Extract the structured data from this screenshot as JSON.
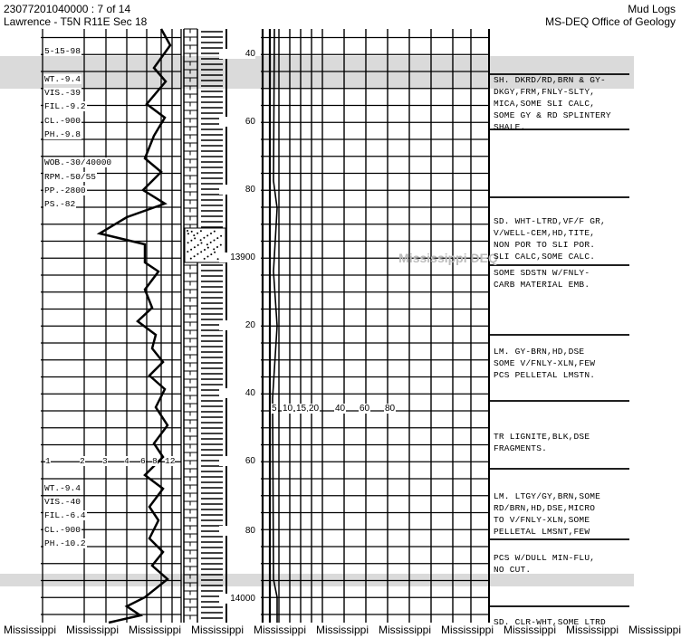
{
  "header": {
    "doc_id": "23077201040000 : 7 of 14",
    "location": "Lawrence - T5N R11E Sec 18",
    "doc_type": "Mud Logs",
    "agency": "MS-DEQ Office of Geology"
  },
  "depth_labels": [
    "40",
    "60",
    "80",
    "13900",
    "20",
    "40",
    "60",
    "80",
    "14000"
  ],
  "mud_props_upper": [
    "5-15-98",
    "WT.-9.4",
    "VIS.-39",
    "FIL.-9.2",
    "CL.-900",
    "PH.-9.8",
    "WOB.-30/40000",
    "RPM.-50/55",
    "PP.-2800",
    "PS.-82"
  ],
  "drill_rate_scale": [
    "1",
    "2",
    "3",
    "4",
    "6",
    "8",
    "12"
  ],
  "mud_props_lower": [
    "WT.-9.4",
    "VIS.-40",
    "FIL.-6.4",
    "CL.-900",
    "PH.-10.2"
  ],
  "gas_scale": [
    "5",
    "10",
    "15",
    "20",
    "40",
    "60",
    "80"
  ],
  "descriptions": [
    "SH. DKRD/RD,BRN & GY-\nDKGY,FRM,FNLY-SLTY,\nMICA,SOME SLI CALC,\nSOME GY & RD SPLINTERY\nSHALE.",
    "SD. WHT-LTRD,VF/F GR,\nV/WELL-CEM,HD,TITE,\nNON POR TO SLI POR.\nSLI CALC,SOME CALC.",
    "SOME SDSTN W/FNLY-\nCARB MATERIAL EMB.",
    "LM. GY-BRN,HD,DSE\nSOME V/FNLY-XLN,FEW\nPCS PELLETAL LMSTN.",
    "TR LIGNITE,BLK,DSE\nFRAGMENTS.",
    "LM. LTGY/GY,BRN,SOME\nRD/BRN,HD,DSE,MICRO\nTO V/FNLY-XLN,SOME\nPELLETAL LMSNT,FEW",
    "PCS W/DULL MIN-FLU,\nNO CUT.",
    "SD. CLR-WHT,SOME LTRD"
  ],
  "watermark": "Mississippi DEQ",
  "footer": [
    "Mississippi",
    "Mississippi",
    "Mississippi",
    "Mississippi",
    "Mississippi",
    "Mississippi",
    "Mississippi",
    "Mississippi",
    "Mississippi",
    "Mississippi",
    "Mississippi"
  ]
}
